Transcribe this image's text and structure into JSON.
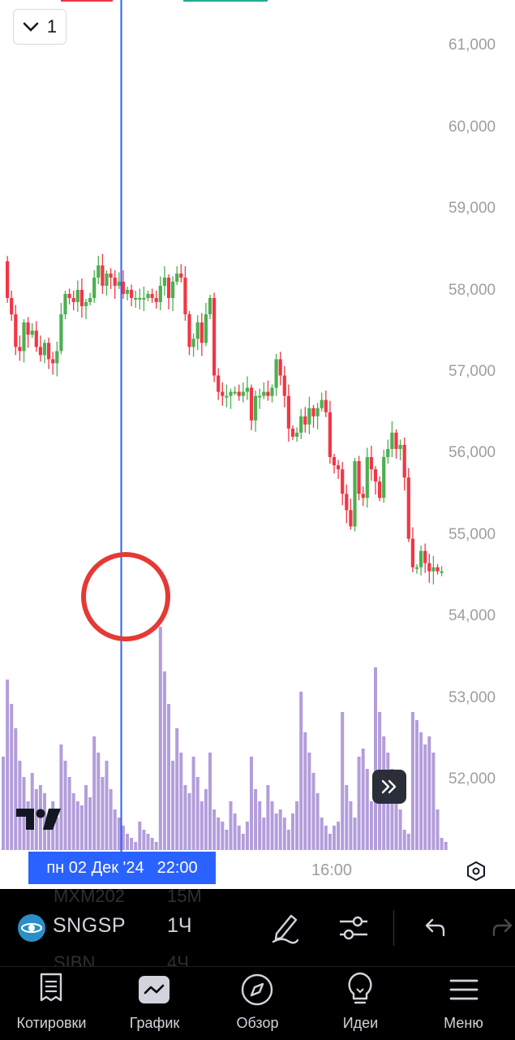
{
  "interval_selector": {
    "chevron_icon": "chevron-down-icon",
    "value": "1"
  },
  "price_axis": {
    "labels": [
      "61,000",
      "60,000",
      "59,000",
      "58,000",
      "57,000",
      "56,000",
      "55,000",
      "54,000",
      "53,000",
      "52,000"
    ]
  },
  "crosshair": {
    "date_label": "пн 02 Дек '24",
    "time_label": "22:00"
  },
  "time_axis": {
    "labels": [
      "16:00"
    ]
  },
  "colors": {
    "up": "#4caf50",
    "down": "#f23645",
    "volume": "#b39ddb",
    "crosshair": "#2962ff",
    "annotation_circle": "#e53935"
  },
  "toolbar": {
    "symbol": "SNGSP",
    "interval": "1Ч",
    "ghost_rows": [
      {
        "symbol": "MXM202",
        "interval": "15М"
      },
      {
        "symbol": "SIBN",
        "interval": "4Ч"
      }
    ],
    "icons": [
      "pencil-icon",
      "indicators-icon",
      "undo-icon",
      "redo-icon"
    ]
  },
  "bottom_nav": {
    "items": [
      {
        "label": "Котировки",
        "icon": "quotes-list-icon"
      },
      {
        "label": "График",
        "icon": "chart-icon",
        "active": true
      },
      {
        "label": "Обзор",
        "icon": "compass-icon"
      },
      {
        "label": "Идеи",
        "icon": "lightbulb-icon"
      },
      {
        "label": "Меню",
        "icon": "menu-icon"
      }
    ]
  }
}
